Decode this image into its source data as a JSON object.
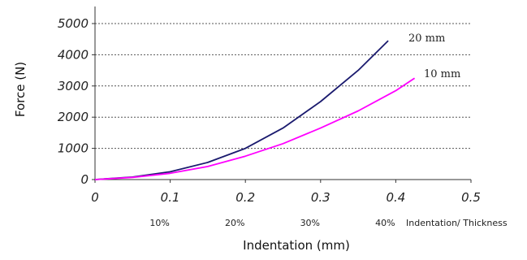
{
  "chart_data": {
    "type": "line",
    "xlabel": "Indentation (mm)",
    "ylabel": "Force (N)",
    "xlim": [
      0,
      0.5
    ],
    "ylim": [
      0,
      5000
    ],
    "x_ticks": [
      0,
      0.1,
      0.2,
      0.3,
      0.4,
      0.5
    ],
    "x_tick_labels": [
      "0",
      "0.1",
      "0.2",
      "0.3",
      "0.4",
      "0.5"
    ],
    "y_ticks": [
      0,
      1000,
      2000,
      3000,
      4000,
      5000
    ],
    "y_tick_labels": [
      "0",
      "1000",
      "2000",
      "3000",
      "4000",
      "5000"
    ],
    "grid": "horizontal-dashed",
    "secondary_axis": {
      "label": "Indentation/ Thickness",
      "ticks": [
        0.1,
        0.2,
        0.3,
        0.4
      ],
      "tick_labels": [
        "10%",
        "20%",
        "30%",
        "40%"
      ]
    },
    "series": [
      {
        "name": "20 mm",
        "color": "#1a1a6e",
        "x": [
          0,
          0.05,
          0.1,
          0.15,
          0.2,
          0.25,
          0.3,
          0.35,
          0.39
        ],
        "y": [
          0,
          80,
          250,
          550,
          1000,
          1650,
          2500,
          3500,
          4450
        ]
      },
      {
        "name": "10 mm",
        "color": "#ff00ff",
        "x": [
          0,
          0.05,
          0.1,
          0.15,
          0.2,
          0.25,
          0.3,
          0.35,
          0.4,
          0.425
        ],
        "y": [
          0,
          70,
          200,
          420,
          750,
          1150,
          1650,
          2200,
          2850,
          3250
        ]
      }
    ]
  }
}
